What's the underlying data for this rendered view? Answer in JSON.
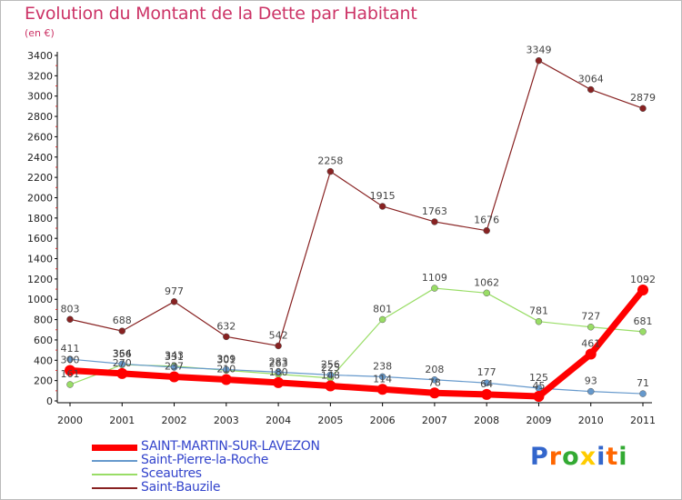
{
  "chart_data": {
    "type": "line",
    "title": "Evolution du Montant de la Dette par Habitant",
    "subtitle": "(en €)",
    "x": [
      "2000",
      "2001",
      "2002",
      "2003",
      "2004",
      "2005",
      "2006",
      "2007",
      "2008",
      "2009",
      "2010",
      "2011"
    ],
    "ylim": [
      0,
      3400
    ],
    "yticks": [
      0,
      200,
      400,
      600,
      800,
      1000,
      1200,
      1400,
      1600,
      1800,
      2000,
      2200,
      2400,
      2600,
      2800,
      3000,
      3200,
      3400
    ],
    "grid": false,
    "legend_position": "bottom-left",
    "series": [
      {
        "name": "SAINT-MARTIN-SUR-LAVEZON",
        "color": "#ff0000",
        "values": [
          300,
          270,
          237,
          210,
          180,
          148,
          114,
          78,
          64,
          45,
          461,
          1092
        ]
      },
      {
        "name": "Saint-Pierre-la-Roche",
        "color": "#6699cc",
        "values": [
          411,
          364,
          331,
          309,
          283,
          256,
          238,
          208,
          177,
          125,
          93,
          71
        ]
      },
      {
        "name": "Sceautres",
        "color": "#99dd66",
        "values": [
          161,
          356,
          343,
          301,
          263,
          225,
          801,
          1109,
          1062,
          781,
          727,
          681
        ]
      },
      {
        "name": "Saint-Bauzile",
        "color": "#882222",
        "values": [
          803,
          688,
          977,
          632,
          542,
          2258,
          1915,
          1763,
          1676,
          3349,
          3064,
          2879
        ]
      }
    ]
  },
  "brand": {
    "letters": [
      "P",
      "r",
      "o",
      "x",
      "i",
      "t",
      "i"
    ],
    "colors": [
      "#3366cc",
      "#ff6600",
      "#33aa33",
      "#ffcc00",
      "#3366cc",
      "#ff6600",
      "#33aa33"
    ]
  }
}
